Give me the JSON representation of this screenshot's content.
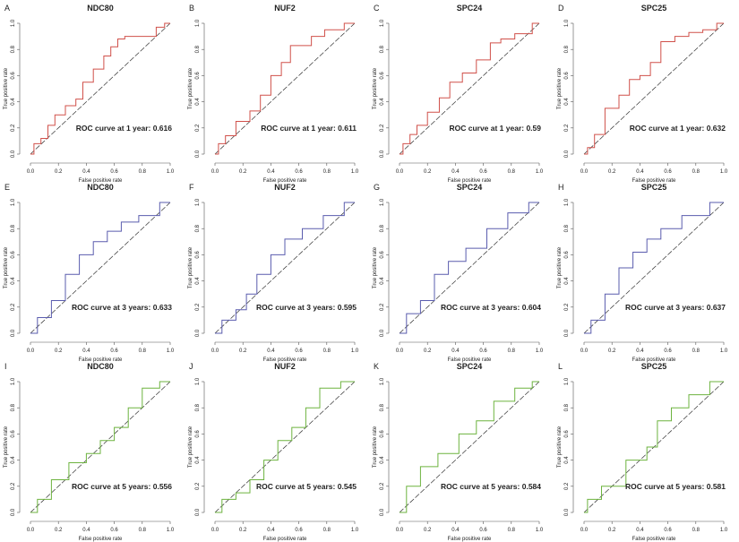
{
  "chart_data": {
    "type": "line",
    "xlabel": "False positive rate",
    "ylabel": "True positive rate",
    "xlim": [
      0,
      1
    ],
    "ylim": [
      0,
      1
    ],
    "ticks": [
      "0.0",
      "0.2",
      "0.4",
      "0.6",
      "0.8",
      "1.0"
    ],
    "colors": {
      "1 year": "#d0504a",
      "3 years": "#5a5cae",
      "5 years": "#6db33f",
      "diagonal": "#333333"
    },
    "panels": [
      {
        "label": "A",
        "title": "NDC80",
        "annotation": "ROC curve at 1 year: 0.616",
        "auc": 0.616,
        "period": "1 year",
        "points": [
          [
            0,
            0
          ],
          [
            0.05,
            0.08
          ],
          [
            0.1,
            0.12
          ],
          [
            0.15,
            0.22
          ],
          [
            0.2,
            0.3
          ],
          [
            0.3,
            0.37
          ],
          [
            0.35,
            0.42
          ],
          [
            0.4,
            0.55
          ],
          [
            0.5,
            0.65
          ],
          [
            0.55,
            0.75
          ],
          [
            0.6,
            0.82
          ],
          [
            0.65,
            0.88
          ],
          [
            0.7,
            0.9
          ],
          [
            0.88,
            0.9
          ],
          [
            0.92,
            0.97
          ],
          [
            1,
            1
          ]
        ]
      },
      {
        "label": "B",
        "title": "NUF2",
        "annotation": "ROC curve at 1 year: 0.611",
        "auc": 0.611,
        "period": "1 year",
        "points": [
          [
            0,
            0
          ],
          [
            0.05,
            0.08
          ],
          [
            0.1,
            0.14
          ],
          [
            0.2,
            0.25
          ],
          [
            0.3,
            0.33
          ],
          [
            0.35,
            0.45
          ],
          [
            0.45,
            0.6
          ],
          [
            0.5,
            0.7
          ],
          [
            0.58,
            0.83
          ],
          [
            0.66,
            0.83
          ],
          [
            0.72,
            0.9
          ],
          [
            0.85,
            0.95
          ],
          [
            1,
            1
          ]
        ]
      },
      {
        "label": "C",
        "title": "SPC24",
        "annotation": "ROC curve at 1 year: 0.59",
        "auc": 0.59,
        "period": "1 year",
        "points": [
          [
            0,
            0
          ],
          [
            0.05,
            0.08
          ],
          [
            0.1,
            0.15
          ],
          [
            0.15,
            0.22
          ],
          [
            0.25,
            0.32
          ],
          [
            0.32,
            0.43
          ],
          [
            0.4,
            0.55
          ],
          [
            0.5,
            0.62
          ],
          [
            0.6,
            0.72
          ],
          [
            0.7,
            0.85
          ],
          [
            0.75,
            0.88
          ],
          [
            0.9,
            0.92
          ],
          [
            1,
            1
          ]
        ]
      },
      {
        "label": "D",
        "title": "SPC25",
        "annotation": "ROC curve at 1 year: 0.632",
        "auc": 0.632,
        "period": "1 year",
        "points": [
          [
            0,
            0
          ],
          [
            0.05,
            0.05
          ],
          [
            0.1,
            0.15
          ],
          [
            0.2,
            0.35
          ],
          [
            0.3,
            0.45
          ],
          [
            0.35,
            0.57
          ],
          [
            0.45,
            0.6
          ],
          [
            0.5,
            0.7
          ],
          [
            0.6,
            0.86
          ],
          [
            0.7,
            0.9
          ],
          [
            0.8,
            0.93
          ],
          [
            0.9,
            0.95
          ],
          [
            1,
            1
          ]
        ]
      },
      {
        "label": "E",
        "title": "NDC80",
        "annotation": "ROC curve at 3 years: 0.633",
        "auc": 0.633,
        "period": "3 years",
        "points": [
          [
            0,
            0
          ],
          [
            0.1,
            0.12
          ],
          [
            0.2,
            0.25
          ],
          [
            0.3,
            0.45
          ],
          [
            0.4,
            0.6
          ],
          [
            0.5,
            0.7
          ],
          [
            0.6,
            0.78
          ],
          [
            0.7,
            0.85
          ],
          [
            0.85,
            0.9
          ],
          [
            1,
            1
          ]
        ]
      },
      {
        "label": "F",
        "title": "NUF2",
        "annotation": "ROC curve at 3 years: 0.595",
        "auc": 0.595,
        "period": "3 years",
        "points": [
          [
            0,
            0
          ],
          [
            0.1,
            0.1
          ],
          [
            0.2,
            0.18
          ],
          [
            0.25,
            0.3
          ],
          [
            0.35,
            0.45
          ],
          [
            0.45,
            0.6
          ],
          [
            0.55,
            0.72
          ],
          [
            0.7,
            0.8
          ],
          [
            0.85,
            0.9
          ],
          [
            1,
            1
          ]
        ]
      },
      {
        "label": "G",
        "title": "SPC24",
        "annotation": "ROC curve at 3 years: 0.604",
        "auc": 0.604,
        "period": "3 years",
        "points": [
          [
            0,
            0
          ],
          [
            0.1,
            0.15
          ],
          [
            0.2,
            0.25
          ],
          [
            0.3,
            0.45
          ],
          [
            0.4,
            0.55
          ],
          [
            0.55,
            0.65
          ],
          [
            0.7,
            0.8
          ],
          [
            0.85,
            0.92
          ],
          [
            1,
            1
          ]
        ]
      },
      {
        "label": "H",
        "title": "SPC25",
        "annotation": "ROC curve at 3 years: 0.637",
        "auc": 0.637,
        "period": "3 years",
        "points": [
          [
            0,
            0
          ],
          [
            0.1,
            0.1
          ],
          [
            0.2,
            0.3
          ],
          [
            0.3,
            0.5
          ],
          [
            0.4,
            0.62
          ],
          [
            0.5,
            0.72
          ],
          [
            0.6,
            0.8
          ],
          [
            0.8,
            0.9
          ],
          [
            1,
            1
          ]
        ]
      },
      {
        "label": "I",
        "title": "NDC80",
        "annotation": "ROC curve at 5 years: 0.556",
        "auc": 0.556,
        "period": "5 years",
        "points": [
          [
            0,
            0
          ],
          [
            0.1,
            0.1
          ],
          [
            0.2,
            0.25
          ],
          [
            0.35,
            0.38
          ],
          [
            0.45,
            0.45
          ],
          [
            0.55,
            0.55
          ],
          [
            0.65,
            0.65
          ],
          [
            0.75,
            0.8
          ],
          [
            0.85,
            0.95
          ],
          [
            1,
            1
          ]
        ]
      },
      {
        "label": "J",
        "title": "NUF2",
        "annotation": "ROC curve at 5 years: 0.545",
        "auc": 0.545,
        "period": "5 years",
        "points": [
          [
            0,
            0
          ],
          [
            0.1,
            0.1
          ],
          [
            0.2,
            0.15
          ],
          [
            0.3,
            0.25
          ],
          [
            0.4,
            0.4
          ],
          [
            0.5,
            0.55
          ],
          [
            0.6,
            0.65
          ],
          [
            0.7,
            0.8
          ],
          [
            0.8,
            0.95
          ],
          [
            1,
            1
          ]
        ]
      },
      {
        "label": "K",
        "title": "SPC24",
        "annotation": "ROC curve at 5 years: 0.584",
        "auc": 0.584,
        "period": "5 years",
        "points": [
          [
            0,
            0
          ],
          [
            0.1,
            0.2
          ],
          [
            0.2,
            0.35
          ],
          [
            0.35,
            0.45
          ],
          [
            0.5,
            0.6
          ],
          [
            0.6,
            0.7
          ],
          [
            0.75,
            0.85
          ],
          [
            0.9,
            0.95
          ],
          [
            1,
            1
          ]
        ]
      },
      {
        "label": "L",
        "title": "SPC25",
        "annotation": "ROC curve at 5 years: 0.581",
        "auc": 0.581,
        "period": "5 years",
        "points": [
          [
            0,
            0
          ],
          [
            0.05,
            0.1
          ],
          [
            0.2,
            0.2
          ],
          [
            0.4,
            0.4
          ],
          [
            0.5,
            0.5
          ],
          [
            0.55,
            0.7
          ],
          [
            0.7,
            0.8
          ],
          [
            0.8,
            0.9
          ],
          [
            1,
            1
          ]
        ]
      }
    ]
  }
}
